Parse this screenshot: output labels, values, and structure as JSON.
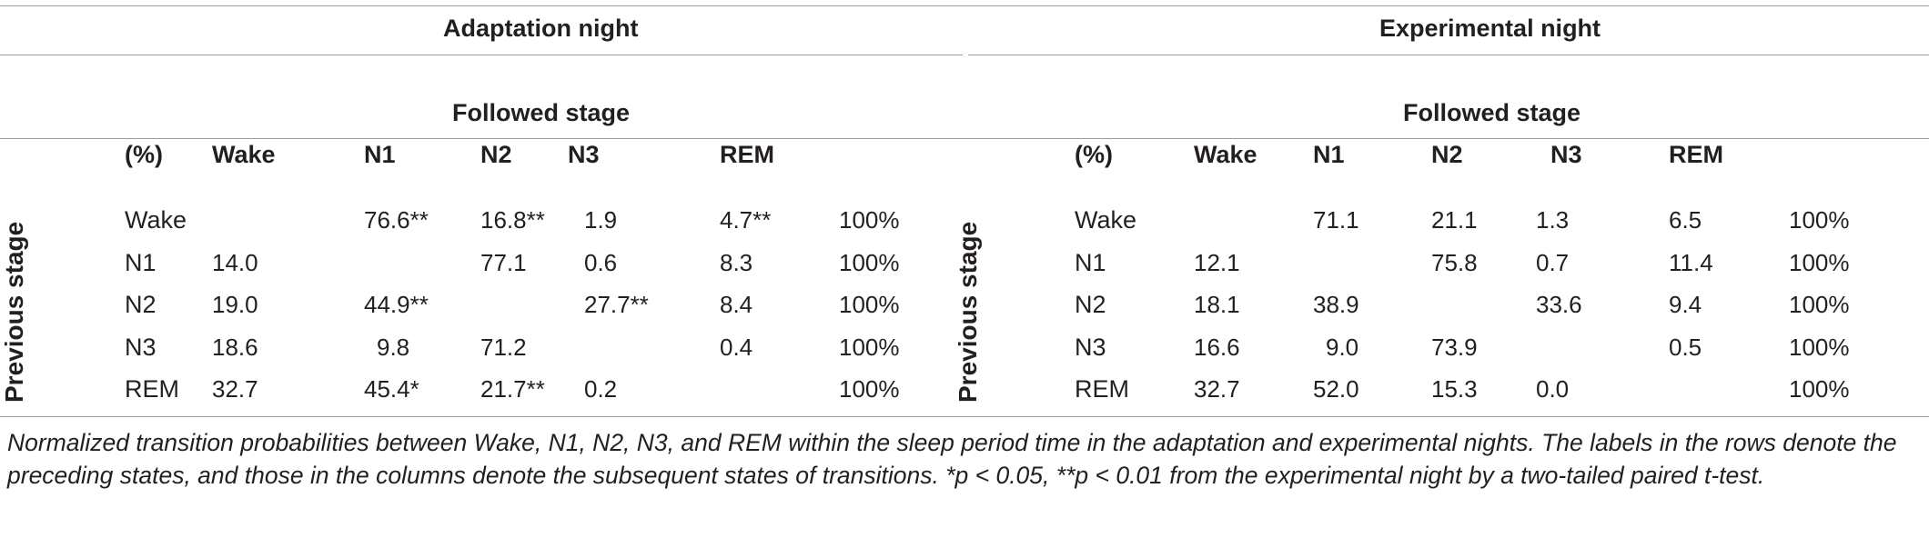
{
  "adaptation": {
    "title": "Adaptation night",
    "followed_stage": "Followed stage",
    "previous_stage": "Previous stage",
    "headers": [
      "(%)",
      "Wake",
      "N1",
      "N2",
      "N3",
      "REM"
    ],
    "rows": [
      [
        "Wake",
        "",
        "76.6**",
        "16.8**",
        "1.9",
        "4.7**",
        "100%"
      ],
      [
        "N1",
        "14.0",
        "",
        "77.1",
        "0.6",
        "8.3",
        "100%"
      ],
      [
        "N2",
        "19.0",
        "44.9**",
        "",
        "27.7**",
        "8.4",
        "100%"
      ],
      [
        "N3",
        "18.6",
        "9.8",
        "71.2",
        "",
        "0.4",
        "100%"
      ],
      [
        "REM",
        "32.7",
        "45.4*",
        "21.7**",
        "0.2",
        "",
        "100%"
      ]
    ]
  },
  "experimental": {
    "title": "Experimental night",
    "followed_stage": "Followed stage",
    "previous_stage": "Previous stage",
    "headers": [
      "(%)",
      "Wake",
      "N1",
      "N2",
      "N3",
      "REM"
    ],
    "rows": [
      [
        "Wake",
        "",
        "71.1",
        "21.1",
        "1.3",
        "6.5",
        "100%"
      ],
      [
        "N1",
        "12.1",
        "",
        "75.8",
        "0.7",
        "11.4",
        "100%"
      ],
      [
        "N2",
        "18.1",
        "38.9",
        "",
        "33.6",
        "9.4",
        "100%"
      ],
      [
        "N3",
        "16.6",
        "9.0",
        "73.9",
        "",
        "0.5",
        "100%"
      ],
      [
        "REM",
        "32.7",
        "52.0",
        "15.3",
        "0.0",
        "",
        "100%"
      ]
    ]
  },
  "caption": "Normalized transition probabilities between Wake, N1, N2, N3, and REM within the sleep period time in the adaptation and experimental nights. The labels in the rows denote the preceding states, and those in the columns denote the subsequent states of transitions. *p < 0.05, **p < 0.01 from the experimental night by a two-tailed paired t-test."
}
